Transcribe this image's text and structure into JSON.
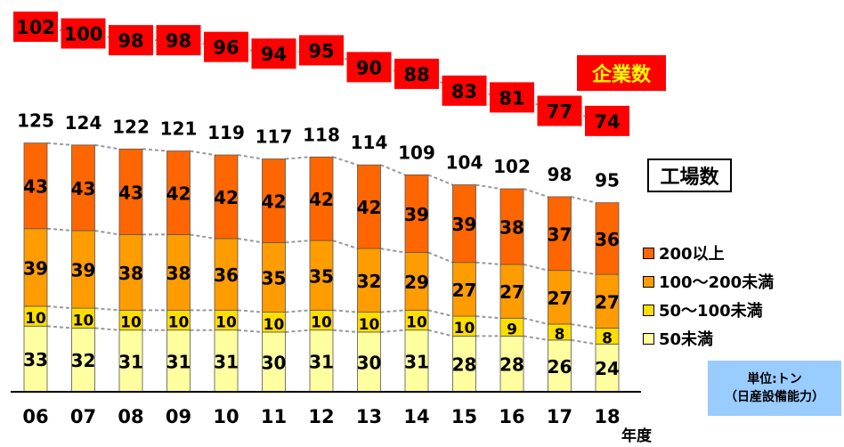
{
  "chart_data": {
    "type": "bar",
    "stacked": true,
    "categories": [
      "06",
      "07",
      "08",
      "09",
      "10",
      "11",
      "12",
      "13",
      "14",
      "15",
      "16",
      "17",
      "18"
    ],
    "x_unit": "年度",
    "series": [
      {
        "name": "50未満",
        "color": "#ffffa0",
        "values": [
          33,
          32,
          31,
          31,
          31,
          30,
          31,
          30,
          31,
          28,
          28,
          26,
          24
        ]
      },
      {
        "name": "50～100未満",
        "color": "#ffdd00",
        "values": [
          10,
          10,
          10,
          10,
          10,
          10,
          10,
          10,
          10,
          10,
          9,
          8,
          8
        ]
      },
      {
        "name": "100～200未満",
        "color": "#ff9c00",
        "values": [
          39,
          39,
          38,
          38,
          36,
          35,
          35,
          32,
          29,
          27,
          27,
          27,
          27
        ]
      },
      {
        "name": "200以上",
        "color": "#ff6600",
        "values": [
          43,
          43,
          43,
          42,
          42,
          42,
          42,
          42,
          39,
          39,
          38,
          37,
          36
        ]
      }
    ],
    "totals": [
      125,
      124,
      122,
      121,
      119,
      117,
      118,
      114,
      109,
      104,
      102,
      98,
      95
    ],
    "companies": [
      102,
      100,
      98,
      98,
      96,
      94,
      95,
      90,
      88,
      83,
      81,
      77,
      74
    ],
    "companies_label": "企業数",
    "totals_label": "工場数",
    "unit_line1": "単位:トン",
    "unit_line2": "（日産設備能力）",
    "legend_order": [
      3,
      2,
      1,
      0
    ],
    "connector_lines": "dashed",
    "grid": false
  }
}
